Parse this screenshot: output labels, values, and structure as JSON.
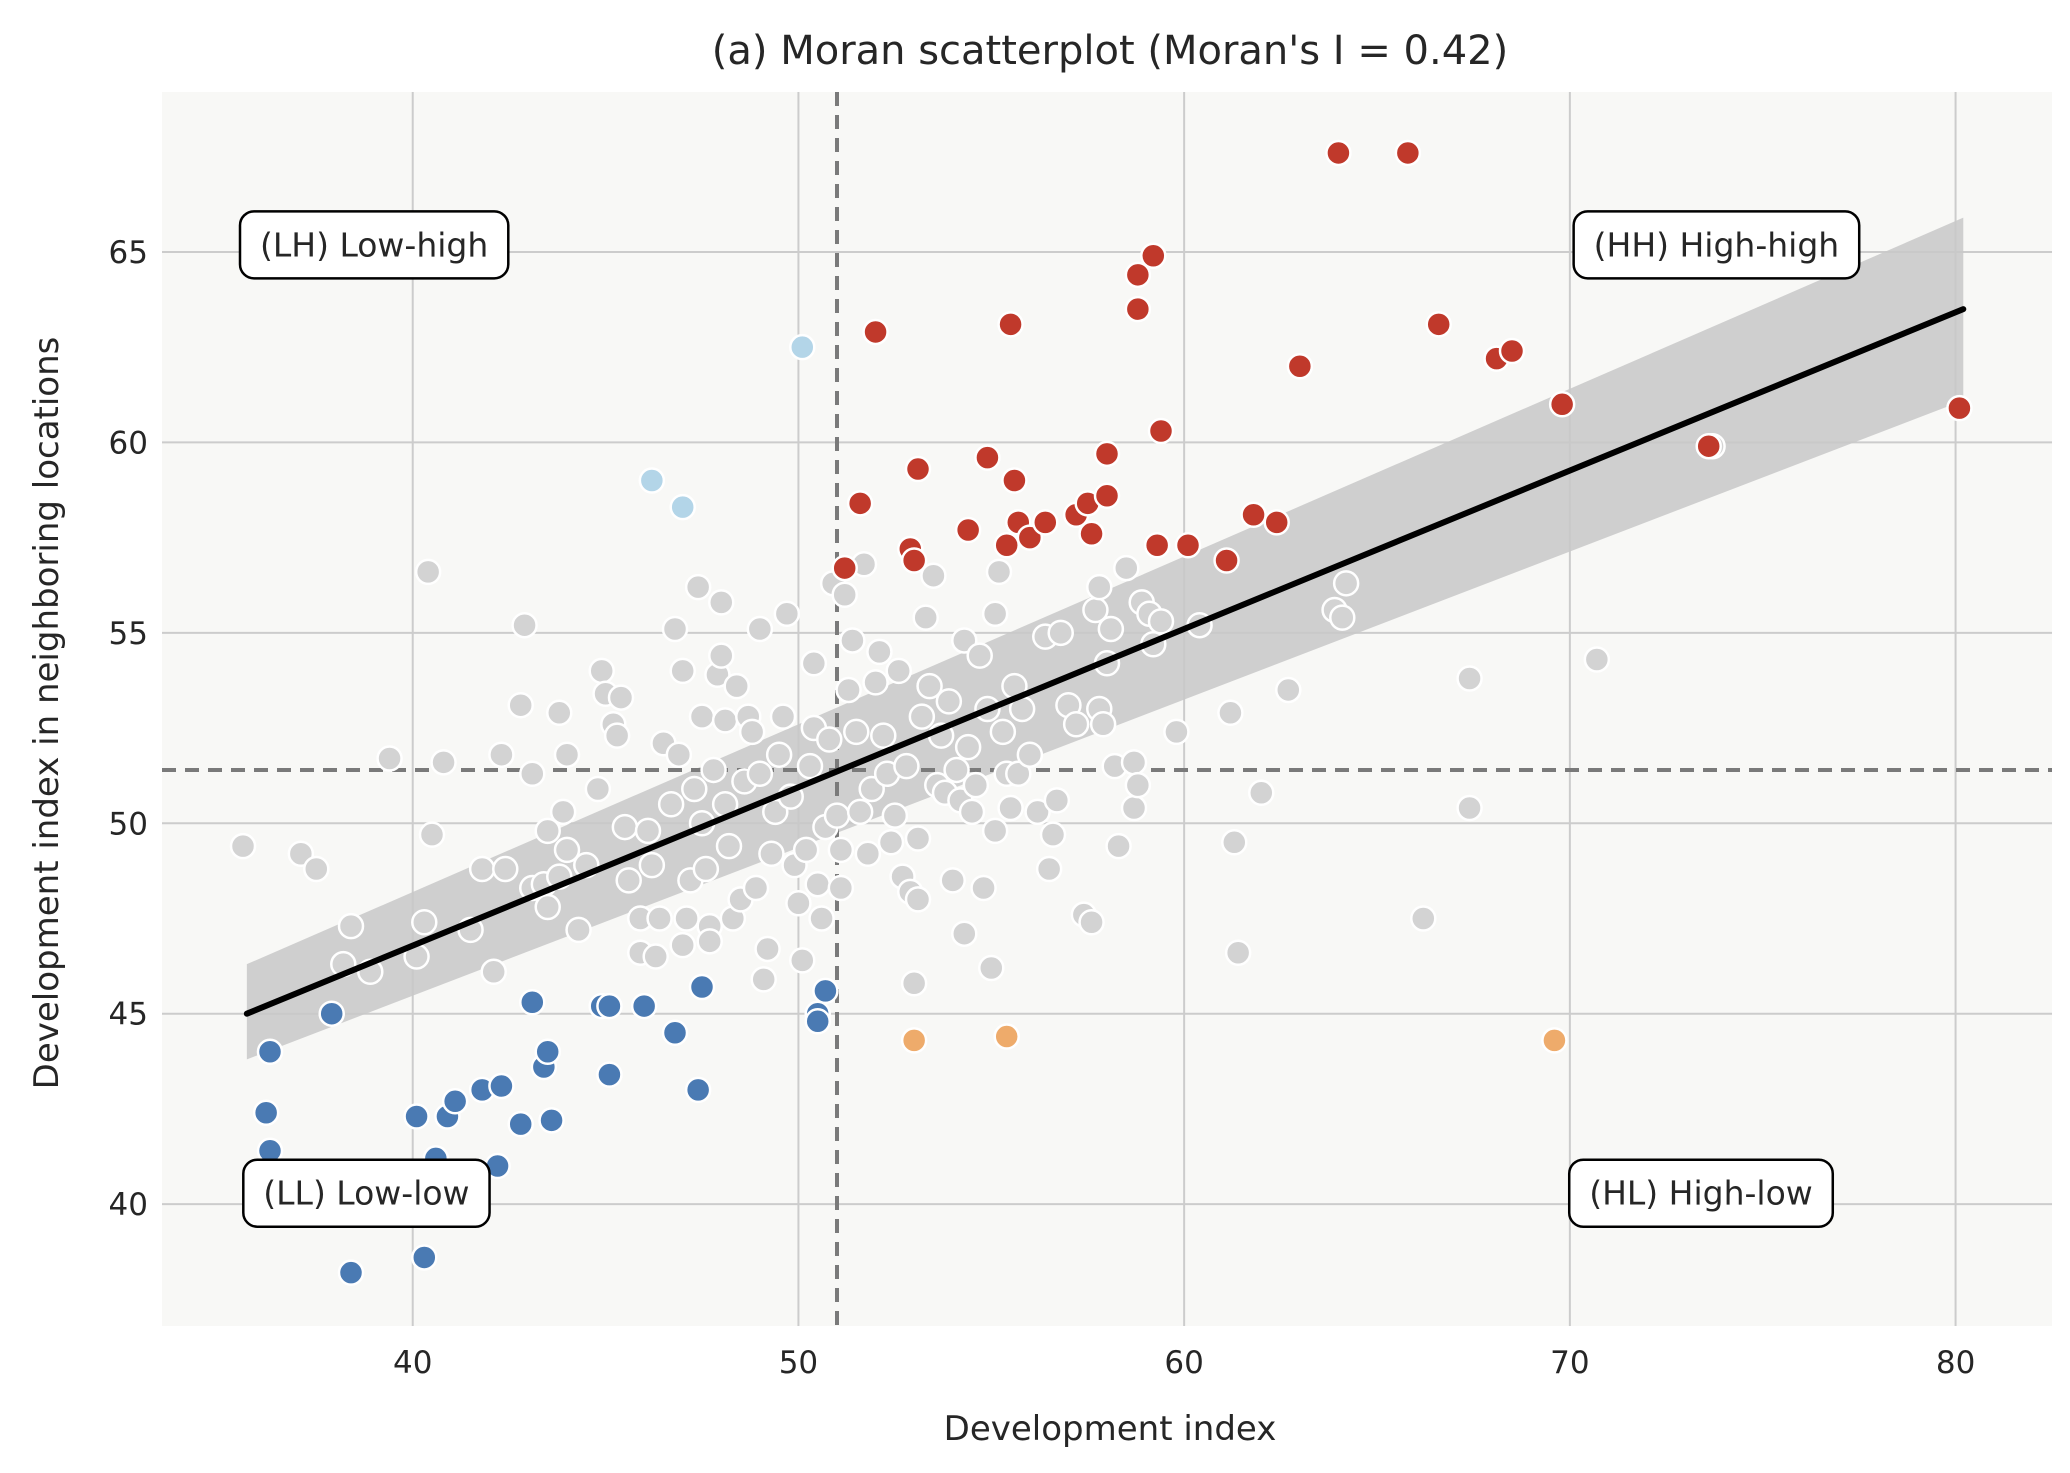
{
  "chart_data": {
    "type": "scatter",
    "title": "(a) Moran scatterplot (Moran's I = 0.42)",
    "xlabel": "Development index",
    "ylabel": "Development index in neighboring locations",
    "xlim": [
      33.5,
      82.5
    ],
    "ylim": [
      36.8,
      69.2
    ],
    "xticks": [
      40,
      50,
      60,
      70,
      80
    ],
    "yticks": [
      40,
      45,
      50,
      55,
      60,
      65
    ],
    "grid": true,
    "reference_lines": {
      "mean_x": 51.0,
      "mean_y": 51.4
    },
    "regression": {
      "x": [
        35.7,
        80.2
      ],
      "y": [
        45.0,
        63.5
      ],
      "band_lower": [
        43.8,
        61.1
      ],
      "band_upper": [
        46.3,
        65.9
      ]
    },
    "quadrant_labels": [
      {
        "text": "(LH) Low-high",
        "x": 39.0,
        "y": 65.2
      },
      {
        "text": "(HH) High-high",
        "x": 73.8,
        "y": 65.2
      },
      {
        "text": "(LL) Low-low",
        "x": 38.8,
        "y": 40.3
      },
      {
        "text": "(HL) High-low",
        "x": 73.4,
        "y": 40.3
      }
    ],
    "colors": {
      "HH": "#c0392b",
      "LL": "#4a7ab3",
      "LH": "#b3d5e8",
      "HL": "#eeab6b",
      "NS": "#d3d3d3",
      "background": "#f8f8f6",
      "grid": "#cccccc",
      "regression": "#000000",
      "band": "#c8c8c8",
      "reference": "#7a7a7a"
    },
    "series": [
      {
        "group": "NS",
        "points": [
          [
            35.6,
            49.4
          ],
          [
            37.1,
            49.2
          ],
          [
            37.5,
            48.8
          ],
          [
            38.4,
            47.3
          ],
          [
            38.2,
            46.3
          ],
          [
            38.9,
            46.1
          ],
          [
            39.4,
            51.7
          ],
          [
            40.1,
            46.5
          ],
          [
            40.3,
            47.4
          ],
          [
            40.4,
            56.6
          ],
          [
            40.5,
            49.7
          ],
          [
            40.8,
            51.6
          ],
          [
            41.5,
            47.2
          ],
          [
            41.8,
            48.8
          ],
          [
            42.1,
            46.1
          ],
          [
            42.3,
            51.8
          ],
          [
            42.4,
            48.8
          ],
          [
            42.8,
            53.1
          ],
          [
            42.9,
            55.2
          ],
          [
            43.1,
            51.3
          ],
          [
            43.1,
            48.3
          ],
          [
            43.4,
            48.4
          ],
          [
            43.5,
            47.8
          ],
          [
            43.5,
            49.8
          ],
          [
            43.8,
            52.9
          ],
          [
            43.8,
            48.6
          ],
          [
            43.9,
            50.3
          ],
          [
            44.0,
            51.8
          ],
          [
            44.0,
            49.3
          ],
          [
            44.3,
            47.2
          ],
          [
            44.5,
            48.9
          ],
          [
            44.8,
            50.9
          ],
          [
            44.9,
            54.0
          ],
          [
            45.0,
            53.4
          ],
          [
            45.2,
            52.6
          ],
          [
            45.3,
            52.3
          ],
          [
            45.4,
            53.3
          ],
          [
            45.5,
            49.9
          ],
          [
            45.6,
            48.5
          ],
          [
            45.9,
            47.5
          ],
          [
            45.9,
            46.6
          ],
          [
            46.1,
            49.8
          ],
          [
            46.2,
            48.9
          ],
          [
            46.3,
            46.5
          ],
          [
            46.4,
            47.5
          ],
          [
            46.5,
            52.1
          ],
          [
            46.7,
            50.5
          ],
          [
            46.8,
            55.1
          ],
          [
            46.9,
            51.8
          ],
          [
            47.0,
            54.0
          ],
          [
            47.0,
            46.8
          ],
          [
            47.1,
            47.5
          ],
          [
            47.2,
            48.5
          ],
          [
            47.3,
            50.9
          ],
          [
            47.4,
            56.2
          ],
          [
            47.5,
            52.8
          ],
          [
            47.5,
            50.0
          ],
          [
            47.6,
            48.8
          ],
          [
            47.7,
            47.3
          ],
          [
            47.7,
            46.9
          ],
          [
            47.8,
            51.4
          ],
          [
            47.9,
            53.9
          ],
          [
            48.0,
            55.8
          ],
          [
            48.0,
            54.4
          ],
          [
            48.1,
            52.7
          ],
          [
            48.1,
            50.5
          ],
          [
            48.2,
            49.4
          ],
          [
            48.3,
            47.5
          ],
          [
            48.4,
            53.6
          ],
          [
            48.5,
            48.0
          ],
          [
            48.6,
            51.1
          ],
          [
            48.7,
            52.8
          ],
          [
            48.8,
            52.4
          ],
          [
            48.9,
            48.3
          ],
          [
            49.0,
            55.1
          ],
          [
            49.0,
            51.3
          ],
          [
            49.1,
            45.9
          ],
          [
            49.2,
            46.7
          ],
          [
            49.3,
            49.2
          ],
          [
            49.4,
            50.3
          ],
          [
            49.5,
            51.8
          ],
          [
            49.6,
            52.8
          ],
          [
            49.7,
            55.5
          ],
          [
            49.8,
            50.7
          ],
          [
            49.9,
            48.9
          ],
          [
            50.0,
            47.9
          ],
          [
            50.1,
            46.4
          ],
          [
            50.2,
            49.3
          ],
          [
            50.3,
            51.5
          ],
          [
            50.4,
            52.5
          ],
          [
            50.4,
            54.2
          ],
          [
            50.5,
            48.4
          ],
          [
            50.6,
            47.5
          ],
          [
            50.7,
            49.9
          ],
          [
            50.8,
            52.2
          ],
          [
            50.9,
            56.3
          ],
          [
            51.0,
            50.2
          ],
          [
            51.1,
            48.3
          ],
          [
            51.1,
            49.3
          ],
          [
            51.2,
            56.0
          ],
          [
            51.3,
            53.5
          ],
          [
            51.4,
            54.8
          ],
          [
            51.5,
            52.4
          ],
          [
            51.6,
            50.3
          ],
          [
            51.7,
            56.8
          ],
          [
            51.8,
            49.2
          ],
          [
            51.9,
            50.9
          ],
          [
            52.0,
            53.7
          ],
          [
            52.1,
            54.5
          ],
          [
            52.2,
            52.3
          ],
          [
            52.3,
            51.3
          ],
          [
            52.4,
            49.5
          ],
          [
            52.5,
            50.2
          ],
          [
            52.6,
            54.0
          ],
          [
            52.7,
            48.6
          ],
          [
            52.8,
            51.5
          ],
          [
            52.9,
            48.2
          ],
          [
            53.0,
            45.8
          ],
          [
            53.1,
            48.0
          ],
          [
            53.1,
            49.6
          ],
          [
            53.2,
            52.8
          ],
          [
            53.3,
            55.4
          ],
          [
            53.4,
            53.6
          ],
          [
            53.5,
            56.5
          ],
          [
            53.6,
            51.0
          ],
          [
            53.7,
            52.3
          ],
          [
            53.8,
            50.8
          ],
          [
            53.9,
            53.2
          ],
          [
            54.0,
            48.5
          ],
          [
            54.1,
            51.4
          ],
          [
            54.2,
            50.6
          ],
          [
            54.3,
            54.8
          ],
          [
            54.3,
            47.1
          ],
          [
            54.4,
            52.0
          ],
          [
            54.5,
            50.3
          ],
          [
            54.6,
            51.0
          ],
          [
            54.7,
            54.4
          ],
          [
            54.8,
            48.3
          ],
          [
            54.9,
            53.0
          ],
          [
            55.0,
            46.2
          ],
          [
            55.1,
            55.5
          ],
          [
            55.1,
            49.8
          ],
          [
            55.2,
            56.6
          ],
          [
            55.3,
            52.4
          ],
          [
            55.4,
            51.3
          ],
          [
            55.5,
            50.4
          ],
          [
            55.6,
            53.6
          ],
          [
            55.7,
            51.3
          ],
          [
            55.8,
            53.0
          ],
          [
            56.0,
            51.8
          ],
          [
            56.2,
            50.3
          ],
          [
            56.4,
            54.9
          ],
          [
            56.5,
            48.8
          ],
          [
            56.6,
            49.7
          ],
          [
            56.7,
            50.6
          ],
          [
            56.8,
            55.0
          ],
          [
            57.0,
            53.1
          ],
          [
            57.2,
            52.6
          ],
          [
            57.4,
            47.6
          ],
          [
            57.6,
            47.4
          ],
          [
            57.7,
            55.6
          ],
          [
            57.8,
            56.2
          ],
          [
            57.8,
            53.0
          ],
          [
            57.9,
            52.6
          ],
          [
            58.0,
            54.2
          ],
          [
            58.1,
            55.1
          ],
          [
            58.2,
            51.5
          ],
          [
            58.3,
            49.4
          ],
          [
            58.5,
            56.7
          ],
          [
            58.7,
            51.6
          ],
          [
            58.7,
            50.4
          ],
          [
            58.8,
            51.0
          ],
          [
            58.9,
            55.8
          ],
          [
            59.1,
            55.5
          ],
          [
            59.2,
            54.7
          ],
          [
            59.4,
            55.3
          ],
          [
            59.8,
            52.4
          ],
          [
            60.4,
            55.2
          ],
          [
            61.2,
            52.9
          ],
          [
            61.3,
            49.5
          ],
          [
            61.4,
            46.6
          ],
          [
            62.0,
            50.8
          ],
          [
            62.7,
            53.5
          ],
          [
            63.9,
            55.6
          ],
          [
            64.1,
            55.4
          ],
          [
            64.2,
            56.3
          ],
          [
            66.2,
            47.5
          ],
          [
            67.4,
            53.8
          ],
          [
            67.4,
            50.4
          ],
          [
            70.7,
            54.3
          ],
          [
            73.7,
            59.9
          ]
        ]
      },
      {
        "group": "HH",
        "points": [
          [
            51.2,
            56.7
          ],
          [
            51.6,
            58.4
          ],
          [
            52.0,
            62.9
          ],
          [
            52.9,
            57.2
          ],
          [
            53.0,
            56.9
          ],
          [
            53.1,
            59.3
          ],
          [
            54.4,
            57.7
          ],
          [
            54.9,
            59.6
          ],
          [
            55.4,
            57.3
          ],
          [
            55.5,
            63.1
          ],
          [
            55.6,
            59.0
          ],
          [
            55.7,
            57.9
          ],
          [
            56.0,
            57.5
          ],
          [
            56.4,
            57.9
          ],
          [
            57.2,
            58.1
          ],
          [
            57.5,
            58.4
          ],
          [
            57.6,
            57.6
          ],
          [
            58.0,
            58.6
          ],
          [
            58.0,
            59.7
          ],
          [
            58.8,
            63.5
          ],
          [
            58.8,
            64.4
          ],
          [
            59.2,
            64.9
          ],
          [
            59.3,
            57.3
          ],
          [
            59.4,
            60.3
          ],
          [
            60.1,
            57.3
          ],
          [
            61.1,
            56.9
          ],
          [
            61.8,
            58.1
          ],
          [
            62.4,
            57.9
          ],
          [
            63.0,
            62.0
          ],
          [
            64.0,
            67.6
          ],
          [
            65.8,
            67.6
          ],
          [
            66.6,
            63.1
          ],
          [
            68.1,
            62.2
          ],
          [
            68.5,
            62.4
          ],
          [
            69.8,
            61.0
          ],
          [
            73.6,
            59.9
          ],
          [
            80.1,
            60.9
          ]
        ]
      },
      {
        "group": "LL",
        "points": [
          [
            36.3,
            44.0
          ],
          [
            36.2,
            42.4
          ],
          [
            36.3,
            41.4
          ],
          [
            37.9,
            45.0
          ],
          [
            38.4,
            38.2
          ],
          [
            40.1,
            42.3
          ],
          [
            40.3,
            38.6
          ],
          [
            40.6,
            41.2
          ],
          [
            40.9,
            42.3
          ],
          [
            41.1,
            42.7
          ],
          [
            41.8,
            43.0
          ],
          [
            42.2,
            41.0
          ],
          [
            42.3,
            43.1
          ],
          [
            42.8,
            42.1
          ],
          [
            43.1,
            45.3
          ],
          [
            43.4,
            43.6
          ],
          [
            43.5,
            44.0
          ],
          [
            43.6,
            42.2
          ],
          [
            44.9,
            45.2
          ],
          [
            45.1,
            45.2
          ],
          [
            45.1,
            43.4
          ],
          [
            46.0,
            45.2
          ],
          [
            46.8,
            44.5
          ],
          [
            47.5,
            45.7
          ],
          [
            47.4,
            43.0
          ],
          [
            50.5,
            45.0
          ],
          [
            50.5,
            44.8
          ],
          [
            50.7,
            45.6
          ]
        ]
      },
      {
        "group": "LH",
        "points": [
          [
            50.1,
            62.5
          ],
          [
            46.2,
            59.0
          ],
          [
            47.0,
            58.3
          ]
        ]
      },
      {
        "group": "HL",
        "points": [
          [
            53.0,
            44.3
          ],
          [
            55.4,
            44.4
          ],
          [
            69.6,
            44.3
          ]
        ]
      }
    ]
  }
}
